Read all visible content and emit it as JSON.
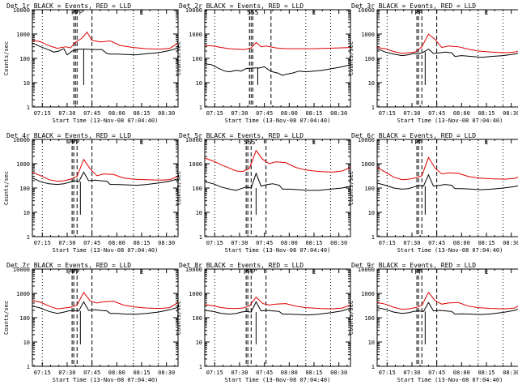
{
  "common": {
    "title_suffix": "BLACK = Events, RED = LLD",
    "ylabel": "Counts/sec",
    "xlabel": "Start Time (13-Nov-08 07:04:40)",
    "xticks": [
      "07:15",
      "07:30",
      "07:45",
      "08:00",
      "08:15",
      "08:30"
    ],
    "yticks": [
      "1",
      "10",
      "100",
      "1000",
      "10000"
    ],
    "colors": {
      "events": "#000000",
      "lld": "#e00000",
      "axis": "#000000",
      "background": "#ffffff"
    }
  },
  "chart_data": [
    {
      "type": "line",
      "title": "Det 1r",
      "label": "1r",
      "xlim_min": [
        9,
        97
      ],
      "ylim": [
        1,
        10000
      ],
      "yscale": "log",
      "series": [
        {
          "name": "Events",
          "x": [
            9,
            14,
            19,
            22,
            25,
            28,
            30,
            33,
            37,
            41,
            47,
            51,
            54,
            56,
            60,
            66,
            72,
            78,
            85,
            92,
            97
          ],
          "y": [
            430,
            300,
            220,
            180,
            200,
            250,
            140,
            200,
            240,
            240,
            230,
            230,
            160,
            150,
            150,
            145,
            140,
            155,
            170,
            210,
            270
          ]
        },
        {
          "name": "LLD",
          "x": [
            9,
            14,
            19,
            24,
            29,
            32,
            35,
            39,
            42,
            45,
            50,
            56,
            62,
            70,
            78,
            86,
            92,
            97
          ],
          "y": [
            560,
            480,
            330,
            260,
            300,
            270,
            460,
            680,
            1200,
            550,
            470,
            520,
            340,
            280,
            250,
            240,
            260,
            420
          ]
        }
      ],
      "dotted_x": [
        15,
        70,
        85
      ],
      "dashed_x": [
        34,
        35,
        36,
        45
      ],
      "spike_x": [
        40
      ],
      "markers": [
        {
          "x": 36,
          "text": "PPP"
        },
        {
          "x": 75,
          "text": "E"
        }
      ]
    },
    {
      "type": "line",
      "title": "Det 2r",
      "label": "2r",
      "xlim_min": [
        9,
        97
      ],
      "ylim": [
        1,
        10000
      ],
      "yscale": "log",
      "series": [
        {
          "name": "Events",
          "x": [
            9,
            13,
            17,
            21,
            24,
            28,
            31,
            34,
            38,
            42,
            45,
            48,
            50,
            53,
            56,
            58,
            62,
            66,
            70,
            75,
            80,
            86,
            92,
            97
          ],
          "y": [
            60,
            55,
            40,
            30,
            28,
            32,
            30,
            38,
            40,
            40,
            45,
            32,
            28,
            25,
            20,
            22,
            25,
            30,
            28,
            30,
            32,
            38,
            45,
            55
          ]
        },
        {
          "name": "LLD",
          "x": [
            9,
            14,
            19,
            24,
            28,
            33,
            37,
            40,
            43,
            46,
            52,
            58,
            66,
            74,
            82,
            90,
            97
          ],
          "y": [
            340,
            320,
            280,
            250,
            240,
            230,
            270,
            450,
            300,
            320,
            270,
            250,
            250,
            250,
            260,
            270,
            280
          ]
        }
      ],
      "dotted_x": [
        15,
        70,
        85
      ],
      "dashed_x": [
        36,
        37,
        38,
        49
      ],
      "spike_x": [
        41
      ],
      "markers": [
        {
          "x": 38,
          "text": "SSS"
        },
        {
          "x": 75,
          "text": "E"
        }
      ]
    },
    {
      "type": "line",
      "title": "Det 3r",
      "label": "3r",
      "xlim_min": [
        9,
        97
      ],
      "ylim": [
        1,
        10000
      ],
      "yscale": "log",
      "series": [
        {
          "name": "Events",
          "x": [
            9,
            14,
            19,
            24,
            28,
            31,
            34,
            37,
            40,
            43,
            47,
            50,
            54,
            56,
            60,
            66,
            72,
            78,
            85,
            92,
            97
          ],
          "y": [
            250,
            180,
            150,
            130,
            140,
            160,
            150,
            180,
            240,
            160,
            170,
            180,
            170,
            120,
            130,
            120,
            110,
            120,
            130,
            150,
            180
          ]
        },
        {
          "name": "LLD",
          "x": [
            9,
            14,
            19,
            24,
            28,
            32,
            36,
            40,
            44,
            48,
            52,
            58,
            64,
            70,
            78,
            86,
            92,
            97
          ],
          "y": [
            280,
            250,
            190,
            160,
            170,
            180,
            300,
            1000,
            600,
            280,
            320,
            300,
            240,
            200,
            180,
            170,
            180,
            230
          ]
        }
      ],
      "dotted_x": [
        15,
        70,
        85
      ],
      "dashed_x": [
        33,
        34,
        36,
        45
      ],
      "spike_x": [
        38
      ],
      "markers": [
        {
          "x": 34,
          "text": "PP"
        },
        {
          "x": 75,
          "text": "E"
        }
      ]
    },
    {
      "type": "line",
      "title": "Det 4r",
      "label": "4r",
      "xlim_min": [
        9,
        97
      ],
      "ylim": [
        1,
        10000
      ],
      "yscale": "log",
      "series": [
        {
          "name": "Events",
          "x": [
            9,
            14,
            19,
            24,
            28,
            31,
            34,
            37,
            40,
            43,
            47,
            50,
            54,
            56,
            60,
            66,
            72,
            78,
            85,
            92,
            97
          ],
          "y": [
            260,
            180,
            150,
            140,
            150,
            170,
            200,
            180,
            450,
            200,
            210,
            200,
            190,
            140,
            140,
            135,
            130,
            140,
            160,
            190,
            240
          ]
        },
        {
          "name": "LLD",
          "x": [
            9,
            14,
            19,
            24,
            28,
            32,
            36,
            40,
            44,
            48,
            52,
            58,
            64,
            70,
            78,
            86,
            92,
            97
          ],
          "y": [
            450,
            320,
            220,
            190,
            200,
            230,
            300,
            1500,
            600,
            320,
            380,
            360,
            260,
            230,
            220,
            210,
            220,
            300
          ]
        }
      ],
      "dotted_x": [
        15,
        70,
        85
      ],
      "dashed_x": [
        33,
        34,
        36,
        45
      ],
      "spike_x": [
        38
      ],
      "markers": [
        {
          "x": 34,
          "text": "PPP"
        },
        {
          "x": 75,
          "text": "E"
        }
      ]
    },
    {
      "type": "line",
      "title": "Det 5r",
      "label": "5r",
      "xlim_min": [
        9,
        97
      ],
      "ylim": [
        1,
        10000
      ],
      "yscale": "log",
      "series": [
        {
          "name": "Events",
          "x": [
            9,
            14,
            19,
            24,
            28,
            31,
            34,
            37,
            40,
            43,
            47,
            50,
            54,
            56,
            60,
            66,
            72,
            78,
            85,
            92,
            97
          ],
          "y": [
            180,
            150,
            110,
            90,
            80,
            95,
            110,
            100,
            400,
            120,
            140,
            150,
            130,
            90,
            90,
            85,
            80,
            80,
            90,
            100,
            120
          ]
        },
        {
          "name": "LLD",
          "x": [
            9,
            14,
            19,
            24,
            28,
            32,
            36,
            40,
            44,
            48,
            52,
            58,
            64,
            70,
            78,
            86,
            92,
            97
          ],
          "y": [
            1700,
            1300,
            900,
            650,
            500,
            480,
            650,
            3500,
            1500,
            1000,
            1200,
            1100,
            700,
            550,
            480,
            450,
            500,
            700
          ]
        }
      ],
      "dotted_x": [
        15,
        70,
        85
      ],
      "dashed_x": [
        34,
        35,
        37,
        46
      ],
      "spike_x": [
        40
      ],
      "markers": [
        {
          "x": 36,
          "text": "SSS"
        },
        {
          "x": 75,
          "text": "E"
        }
      ]
    },
    {
      "type": "line",
      "title": "Det 6r",
      "label": "6r",
      "xlim_min": [
        9,
        97
      ],
      "ylim": [
        1,
        10000
      ],
      "yscale": "log",
      "series": [
        {
          "name": "Events",
          "x": [
            9,
            14,
            19,
            24,
            28,
            31,
            34,
            37,
            40,
            43,
            47,
            50,
            54,
            56,
            60,
            66,
            72,
            78,
            85,
            92,
            97
          ],
          "y": [
            160,
            130,
            100,
            90,
            95,
            110,
            130,
            120,
            350,
            120,
            130,
            140,
            130,
            95,
            95,
            90,
            85,
            90,
            100,
            115,
            140
          ]
        },
        {
          "name": "LLD",
          "x": [
            9,
            14,
            19,
            24,
            28,
            32,
            36,
            40,
            44,
            48,
            52,
            58,
            64,
            70,
            78,
            86,
            92,
            97
          ],
          "y": [
            700,
            450,
            280,
            220,
            230,
            260,
            320,
            1800,
            650,
            380,
            420,
            400,
            300,
            260,
            240,
            230,
            250,
            330
          ]
        }
      ],
      "dotted_x": [
        15,
        70,
        85
      ],
      "dashed_x": [
        33,
        34,
        36,
        45
      ],
      "spike_x": [
        38
      ],
      "markers": [
        {
          "x": 34,
          "text": "PP"
        },
        {
          "x": 75,
          "text": "E"
        }
      ]
    },
    {
      "type": "line",
      "title": "Det 7r",
      "label": "7r",
      "xlim_min": [
        9,
        97
      ],
      "ylim": [
        1,
        10000
      ],
      "yscale": "log",
      "series": [
        {
          "name": "Events",
          "x": [
            9,
            14,
            19,
            24,
            28,
            31,
            34,
            37,
            40,
            43,
            47,
            50,
            54,
            56,
            60,
            66,
            72,
            78,
            85,
            92,
            97
          ],
          "y": [
            300,
            250,
            180,
            150,
            170,
            190,
            200,
            190,
            450,
            200,
            210,
            200,
            190,
            150,
            150,
            140,
            140,
            150,
            170,
            210,
            270
          ]
        },
        {
          "name": "LLD",
          "x": [
            9,
            14,
            19,
            24,
            28,
            32,
            36,
            40,
            44,
            48,
            52,
            58,
            64,
            70,
            78,
            86,
            92,
            97
          ],
          "y": [
            500,
            430,
            300,
            230,
            250,
            270,
            330,
            1100,
            480,
            400,
            450,
            470,
            330,
            280,
            250,
            240,
            260,
            420
          ]
        }
      ],
      "dotted_x": [
        15,
        70,
        85
      ],
      "dashed_x": [
        33,
        34,
        36,
        45
      ],
      "spike_x": [
        38
      ],
      "markers": [
        {
          "x": 34,
          "text": "PPP"
        },
        {
          "x": 75,
          "text": "E"
        }
      ]
    },
    {
      "type": "line",
      "title": "Det 8r",
      "label": "8r",
      "xlim_min": [
        9,
        97
      ],
      "ylim": [
        1,
        10000
      ],
      "yscale": "log",
      "series": [
        {
          "name": "Events",
          "x": [
            9,
            14,
            19,
            24,
            28,
            31,
            34,
            37,
            40,
            43,
            47,
            50,
            54,
            56,
            60,
            66,
            72,
            78,
            85,
            92,
            97
          ],
          "y": [
            200,
            180,
            150,
            140,
            150,
            170,
            180,
            170,
            450,
            190,
            200,
            190,
            180,
            140,
            140,
            135,
            130,
            140,
            160,
            190,
            250
          ]
        },
        {
          "name": "LLD",
          "x": [
            9,
            14,
            19,
            24,
            28,
            32,
            36,
            40,
            44,
            48,
            52,
            58,
            64,
            70,
            78,
            86,
            92,
            97
          ],
          "y": [
            350,
            310,
            260,
            240,
            240,
            250,
            300,
            700,
            380,
            330,
            360,
            380,
            300,
            260,
            240,
            230,
            250,
            330
          ]
        }
      ],
      "dotted_x": [
        15,
        70,
        85
      ],
      "dashed_x": [
        34,
        35,
        37,
        46
      ],
      "spike_x": [
        40
      ],
      "markers": [
        {
          "x": 36,
          "text": "PPP"
        },
        {
          "x": 75,
          "text": "E"
        }
      ]
    },
    {
      "type": "line",
      "title": "Det 9r",
      "label": "9r",
      "xlim_min": [
        9,
        97
      ],
      "ylim": [
        1,
        10000
      ],
      "yscale": "log",
      "series": [
        {
          "name": "Events",
          "x": [
            9,
            14,
            19,
            24,
            28,
            31,
            34,
            37,
            40,
            43,
            47,
            50,
            54,
            56,
            60,
            66,
            72,
            78,
            85,
            92,
            97
          ],
          "y": [
            260,
            220,
            170,
            150,
            160,
            180,
            190,
            180,
            420,
            190,
            200,
            190,
            180,
            140,
            145,
            140,
            135,
            145,
            165,
            200,
            260
          ]
        },
        {
          "name": "LLD",
          "x": [
            9,
            14,
            19,
            24,
            28,
            32,
            36,
            40,
            44,
            48,
            52,
            58,
            64,
            70,
            78,
            86,
            92,
            97
          ],
          "y": [
            420,
            360,
            270,
            220,
            230,
            260,
            320,
            1100,
            500,
            360,
            400,
            420,
            300,
            260,
            240,
            230,
            250,
            380
          ]
        }
      ],
      "dotted_x": [
        15,
        70,
        85
      ],
      "dashed_x": [
        33,
        34,
        36,
        45
      ],
      "spike_x": [
        38
      ],
      "markers": [
        {
          "x": 34,
          "text": "PP"
        },
        {
          "x": 75,
          "text": "E"
        }
      ]
    }
  ]
}
